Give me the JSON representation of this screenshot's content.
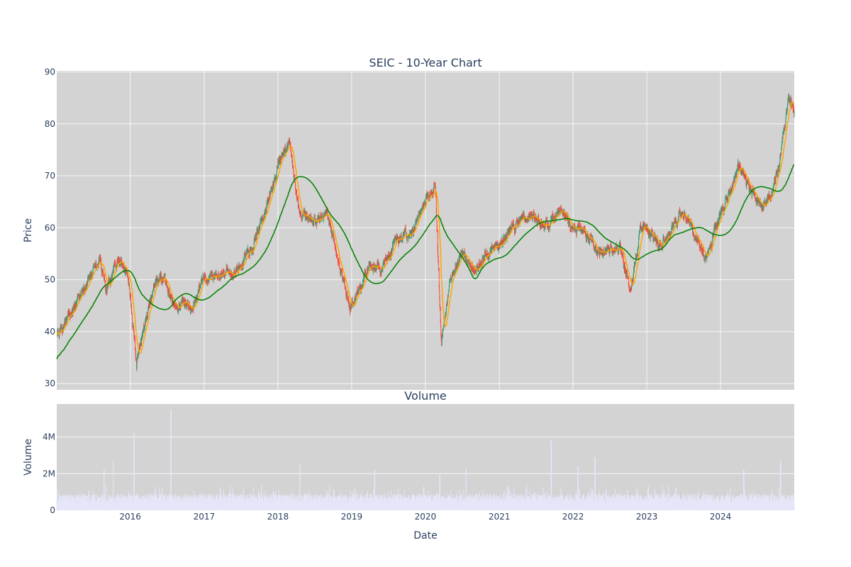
{
  "chart_data": {
    "type": "candlestick",
    "title": "SEIC - 10-Year Chart",
    "price_panel": {
      "ylabel": "Price",
      "ylim": [
        28.8,
        90.2
      ],
      "yticks": [
        "30",
        "40",
        "50",
        "60",
        "70",
        "80",
        "90"
      ],
      "grid": true,
      "series": [
        {
          "name": "",
          "kind": "ohlc",
          "up_color": "#3d9970",
          "down_color": "#ff4136"
        },
        {
          "name": "",
          "kind": "moving-average-short",
          "color": "#ffa500"
        },
        {
          "name": "",
          "kind": "moving-average-long",
          "color": "#008000"
        }
      ],
      "close_anchors": [
        [
          "2015-01-02",
          39.5
        ],
        [
          "2015-03-15",
          43.5
        ],
        [
          "2015-06-01",
          49.5
        ],
        [
          "2015-08-01",
          54.5
        ],
        [
          "2015-09-01",
          48.0
        ],
        [
          "2015-11-01",
          54.0
        ],
        [
          "2015-12-20",
          51.0
        ],
        [
          "2016-02-01",
          34.0
        ],
        [
          "2016-03-01",
          39.0
        ],
        [
          "2016-05-01",
          49.5
        ],
        [
          "2016-06-20",
          50.0
        ],
        [
          "2016-08-01",
          45.5
        ],
        [
          "2016-10-01",
          45.0
        ],
        [
          "2016-11-01",
          44.5
        ],
        [
          "2017-01-01",
          50.0
        ],
        [
          "2017-04-01",
          51.0
        ],
        [
          "2017-07-01",
          53.0
        ],
        [
          "2017-09-01",
          57.0
        ],
        [
          "2017-11-01",
          64.0
        ],
        [
          "2018-01-01",
          72.0
        ],
        [
          "2018-03-01",
          76.5
        ],
        [
          "2018-04-15",
          63.0
        ],
        [
          "2018-07-01",
          61.0
        ],
        [
          "2018-09-01",
          62.0
        ],
        [
          "2018-11-01",
          53.0
        ],
        [
          "2018-12-24",
          44.0
        ],
        [
          "2019-02-01",
          48.0
        ],
        [
          "2019-04-01",
          53.0
        ],
        [
          "2019-06-01",
          52.0
        ],
        [
          "2019-08-01",
          57.0
        ],
        [
          "2019-11-01",
          60.0
        ],
        [
          "2020-01-01",
          65.0
        ],
        [
          "2020-02-20",
          68.0
        ],
        [
          "2020-03-20",
          38.0
        ],
        [
          "2020-05-01",
          50.0
        ],
        [
          "2020-07-01",
          55.0
        ],
        [
          "2020-09-01",
          52.0
        ],
        [
          "2020-11-01",
          55.0
        ],
        [
          "2021-01-01",
          57.0
        ],
        [
          "2021-04-01",
          61.0
        ],
        [
          "2021-06-01",
          62.5
        ],
        [
          "2021-09-01",
          60.0
        ],
        [
          "2021-11-01",
          63.5
        ],
        [
          "2022-01-01",
          60.0
        ],
        [
          "2022-03-01",
          59.0
        ],
        [
          "2022-05-01",
          55.0
        ],
        [
          "2022-07-01",
          56.0
        ],
        [
          "2022-09-01",
          55.0
        ],
        [
          "2022-10-15",
          47.0
        ],
        [
          "2022-12-01",
          61.0
        ],
        [
          "2023-03-01",
          57.0
        ],
        [
          "2023-05-01",
          59.0
        ],
        [
          "2023-06-15",
          62.5
        ],
        [
          "2023-08-01",
          61.0
        ],
        [
          "2023-09-15",
          57.0
        ],
        [
          "2023-10-25",
          54.0
        ],
        [
          "2024-01-01",
          63.0
        ],
        [
          "2024-03-01",
          68.0
        ],
        [
          "2024-04-01",
          72.0
        ],
        [
          "2024-06-01",
          67.0
        ],
        [
          "2024-08-01",
          64.0
        ],
        [
          "2024-09-15",
          67.0
        ],
        [
          "2024-10-15",
          72.0
        ],
        [
          "2024-11-15",
          80.0
        ],
        [
          "2024-12-01",
          86.0
        ],
        [
          "2024-12-31",
          82.5
        ]
      ]
    },
    "volume_panel": {
      "title": "Volume",
      "ylabel": "Volume",
      "ylim": [
        0,
        5800000
      ],
      "yticks": [
        "0",
        "2M",
        "4M"
      ],
      "color": "#e6e6fa",
      "spikes": [
        [
          "2015-08-24",
          2200000
        ],
        [
          "2015-10-10",
          2700000
        ],
        [
          "2016-01-20",
          4200000
        ],
        [
          "2016-07-20",
          5500000
        ],
        [
          "2018-04-20",
          2500000
        ],
        [
          "2019-04-25",
          2200000
        ],
        [
          "2020-03-12",
          2000000
        ],
        [
          "2020-07-20",
          2300000
        ],
        [
          "2021-09-15",
          3800000
        ],
        [
          "2022-01-25",
          2400000
        ],
        [
          "2022-04-20",
          2900000
        ],
        [
          "2024-04-25",
          2200000
        ],
        [
          "2024-10-24",
          2700000
        ]
      ]
    },
    "x_axis": {
      "xlabel": "Date",
      "range": [
        "2015-01-02",
        "2024-12-31"
      ],
      "ticks": [
        "2016",
        "2017",
        "2018",
        "2019",
        "2020",
        "2021",
        "2022",
        "2023",
        "2024"
      ]
    }
  }
}
